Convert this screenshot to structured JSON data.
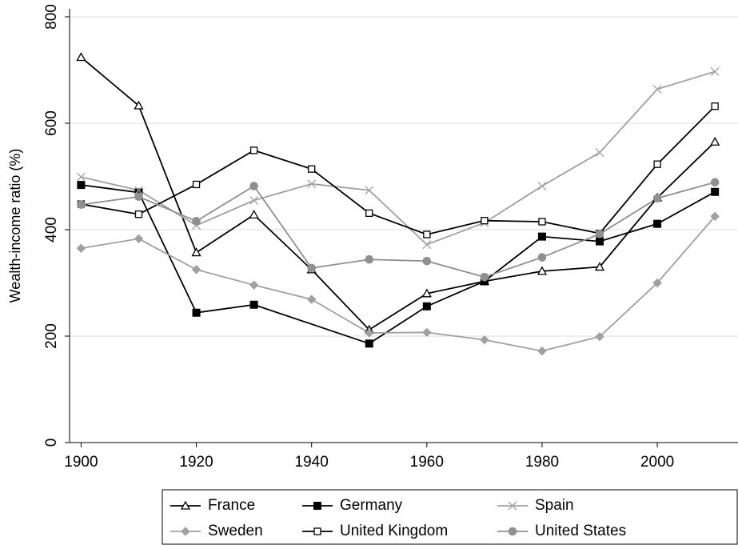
{
  "chart_data": {
    "type": "line",
    "y_label": "Wealth-income ratio (%)",
    "xlim": [
      1898,
      2014
    ],
    "xticks": [
      1900,
      1920,
      1940,
      1960,
      1980,
      2000
    ],
    "ylim": [
      0,
      815
    ],
    "yticks": [
      0,
      200,
      400,
      600,
      800
    ],
    "grid": true,
    "legend": "bottom",
    "series": [
      {
        "name": "France",
        "color": "#000000",
        "marker": "triangle-open",
        "x": [
          1900,
          1910,
          1920,
          1930,
          1940,
          1950,
          1960,
          1970,
          1980,
          1990,
          2000,
          2010
        ],
        "values": [
          724,
          633,
          357,
          428,
          325,
          212,
          280,
          303,
          322,
          330,
          460,
          565
        ]
      },
      {
        "name": "Germany",
        "color": "#000000",
        "marker": "square-filled",
        "x": [
          1900,
          1910,
          1920,
          1930,
          1950,
          1960,
          1970,
          1980,
          1990,
          2000,
          2010
        ],
        "values": [
          484,
          470,
          244,
          259,
          186,
          256,
          303,
          387,
          378,
          411,
          471
        ]
      },
      {
        "name": "Spain",
        "color": "#a0a0a0",
        "marker": "cross",
        "x": [
          1900,
          1910,
          1920,
          1930,
          1940,
          1950,
          1960,
          1970,
          1980,
          1990,
          2000,
          2010
        ],
        "values": [
          499,
          474,
          408,
          455,
          486,
          474,
          372,
          413,
          482,
          545,
          664,
          697
        ]
      },
      {
        "name": "Sweden",
        "color": "#a0a0a0",
        "marker": "diamond-filled",
        "x": [
          1900,
          1910,
          1920,
          1930,
          1940,
          1950,
          1960,
          1970,
          1980,
          1990,
          2000,
          2010
        ],
        "values": [
          365,
          383,
          325,
          296,
          269,
          206,
          207,
          193,
          172,
          199,
          300,
          425
        ]
      },
      {
        "name": "United Kingdom",
        "color": "#000000",
        "marker": "square-open",
        "x": [
          1900,
          1910,
          1920,
          1930,
          1940,
          1950,
          1960,
          1970,
          1980,
          1990,
          2000,
          2010
        ],
        "values": [
          448,
          429,
          485,
          549,
          514,
          431,
          391,
          417,
          415,
          393,
          523,
          632
        ]
      },
      {
        "name": "United States",
        "color": "#909090",
        "marker": "circle-filled",
        "x": [
          1900,
          1910,
          1920,
          1930,
          1940,
          1950,
          1960,
          1970,
          1980,
          1990,
          2000,
          2010
        ],
        "values": [
          447,
          462,
          416,
          482,
          328,
          344,
          341,
          311,
          348,
          392,
          459,
          489
        ]
      }
    ]
  }
}
